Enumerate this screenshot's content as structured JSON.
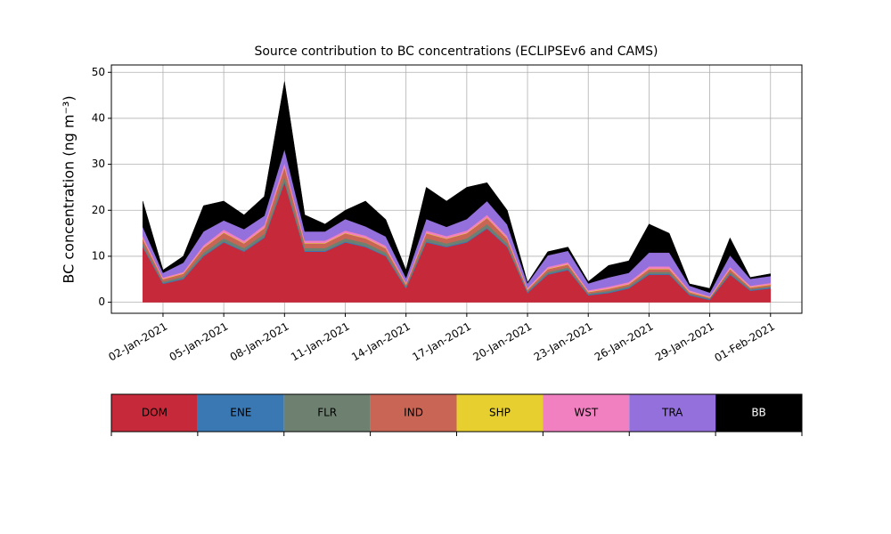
{
  "chart_data": {
    "type": "stacked_area",
    "title": "Source contribution to BC concentrations (ECLIPSEv6 and CAMS)",
    "ylabel": "BC concentration (ng m⁻³)",
    "x": [
      "2021-01-01",
      "2021-01-02",
      "2021-01-03",
      "2021-01-04",
      "2021-01-05",
      "2021-01-06",
      "2021-01-07",
      "2021-01-08",
      "2021-01-09",
      "2021-01-10",
      "2021-01-11",
      "2021-01-12",
      "2021-01-13",
      "2021-01-14",
      "2021-01-15",
      "2021-01-16",
      "2021-01-17",
      "2021-01-18",
      "2021-01-19",
      "2021-01-20",
      "2021-01-21",
      "2021-01-22",
      "2021-01-23",
      "2021-01-24",
      "2021-01-25",
      "2021-01-26",
      "2021-01-27",
      "2021-01-28",
      "2021-01-29",
      "2021-01-30",
      "2021-01-31",
      "2021-02-01"
    ],
    "xticks": [
      {
        "value": "2021-01-02",
        "label": "02-Jan-2021"
      },
      {
        "value": "2021-01-05",
        "label": "05-Jan-2021"
      },
      {
        "value": "2021-01-08",
        "label": "08-Jan-2021"
      },
      {
        "value": "2021-01-11",
        "label": "11-Jan-2021"
      },
      {
        "value": "2021-01-14",
        "label": "14-Jan-2021"
      },
      {
        "value": "2021-01-17",
        "label": "17-Jan-2021"
      },
      {
        "value": "2021-01-20",
        "label": "20-Jan-2021"
      },
      {
        "value": "2021-01-23",
        "label": "23-Jan-2021"
      },
      {
        "value": "2021-01-26",
        "label": "26-Jan-2021"
      },
      {
        "value": "2021-01-29",
        "label": "29-Jan-2021"
      },
      {
        "value": "2021-02-01",
        "label": "01-Feb-2021"
      }
    ],
    "ylim": [
      -2.4,
      51.6
    ],
    "yticks": [
      0,
      10,
      20,
      30,
      40,
      50
    ],
    "grid": true,
    "series": [
      {
        "name": "DOM",
        "color": "#c62a3a",
        "values": [
          12,
          4,
          5,
          10,
          13,
          11,
          14,
          26,
          11,
          11,
          13,
          12,
          10,
          3,
          13,
          12,
          13,
          16,
          12,
          2,
          6,
          7,
          1.5,
          2,
          3,
          6,
          6,
          1.5,
          0.5,
          6,
          2.5,
          3
        ]
      },
      {
        "name": "ENE",
        "color": "#3a78b4",
        "values": [
          0.2,
          0.2,
          0.2,
          0.2,
          0.2,
          0.2,
          0.2,
          0.2,
          0.2,
          0.2,
          0.2,
          0.2,
          0.2,
          0.2,
          0.2,
          0.2,
          0.2,
          0.2,
          0.2,
          0.2,
          0.2,
          0.2,
          0.2,
          0.2,
          0.2,
          0.2,
          0.2,
          0.2,
          0.2,
          0.2,
          0.2,
          0.2
        ]
      },
      {
        "name": "FLR",
        "color": "#6e8070",
        "values": [
          0.6,
          0.3,
          0.4,
          0.6,
          0.7,
          0.6,
          0.7,
          1.2,
          0.6,
          0.6,
          0.7,
          0.7,
          0.6,
          0.3,
          0.7,
          0.6,
          0.7,
          0.8,
          0.6,
          0.2,
          0.4,
          0.4,
          0.2,
          0.3,
          0.3,
          0.4,
          0.4,
          0.2,
          0.1,
          0.4,
          0.2,
          0.2
        ]
      },
      {
        "name": "IND",
        "color": "#c96555",
        "values": [
          1,
          0.5,
          0.6,
          1,
          1.2,
          1,
          1.2,
          2,
          1,
          1,
          1.1,
          1,
          0.9,
          0.4,
          1.1,
          1,
          1.1,
          1.3,
          1,
          0.3,
          0.6,
          0.6,
          0.3,
          0.4,
          0.4,
          0.6,
          0.6,
          0.3,
          0.2,
          0.6,
          0.3,
          0.4
        ]
      },
      {
        "name": "SHP",
        "color": "#e6cf2e",
        "values": [
          0.1,
          0.1,
          0.1,
          0.1,
          0.1,
          0.1,
          0.1,
          0.1,
          0.1,
          0.1,
          0.1,
          0.1,
          0.1,
          0.1,
          0.1,
          0.1,
          0.1,
          0.1,
          0.1,
          0.1,
          0.1,
          0.1,
          0.1,
          0.1,
          0.1,
          0.1,
          0.1,
          0.1,
          0.1,
          0.1,
          0.1,
          0.1
        ]
      },
      {
        "name": "WST",
        "color": "#f080c0",
        "values": [
          0.5,
          0.3,
          0.3,
          0.5,
          0.6,
          0.5,
          0.6,
          0.8,
          0.5,
          0.5,
          0.5,
          0.5,
          0.5,
          0.3,
          0.5,
          0.5,
          0.5,
          0.6,
          0.5,
          0.3,
          0.4,
          0.4,
          0.3,
          0.4,
          0.4,
          0.5,
          0.5,
          0.3,
          0.2,
          0.4,
          0.3,
          0.3
        ]
      },
      {
        "name": "TRA",
        "color": "#9370db",
        "values": [
          2,
          1,
          2,
          3,
          2,
          2.5,
          2,
          3,
          2,
          2,
          2.5,
          2,
          2,
          1,
          2.5,
          2,
          2.5,
          3,
          2.5,
          1,
          2.5,
          2.5,
          1.5,
          2,
          2,
          3,
          3,
          1,
          0.8,
          2.5,
          1.5,
          1.5
        ]
      },
      {
        "name": "BB",
        "color": "#000000",
        "values": [
          5.6,
          0.6,
          1.4,
          5.6,
          4.2,
          3.1,
          4.2,
          14.7,
          3.6,
          1.6,
          1.9,
          5.5,
          3.7,
          1.7,
          6.9,
          5.6,
          6.9,
          4,
          3.1,
          0.2,
          0.8,
          0.8,
          0.4,
          2.6,
          2.6,
          6.2,
          4.2,
          0.4,
          0.9,
          3.8,
          0.3,
          0.5
        ]
      }
    ]
  }
}
